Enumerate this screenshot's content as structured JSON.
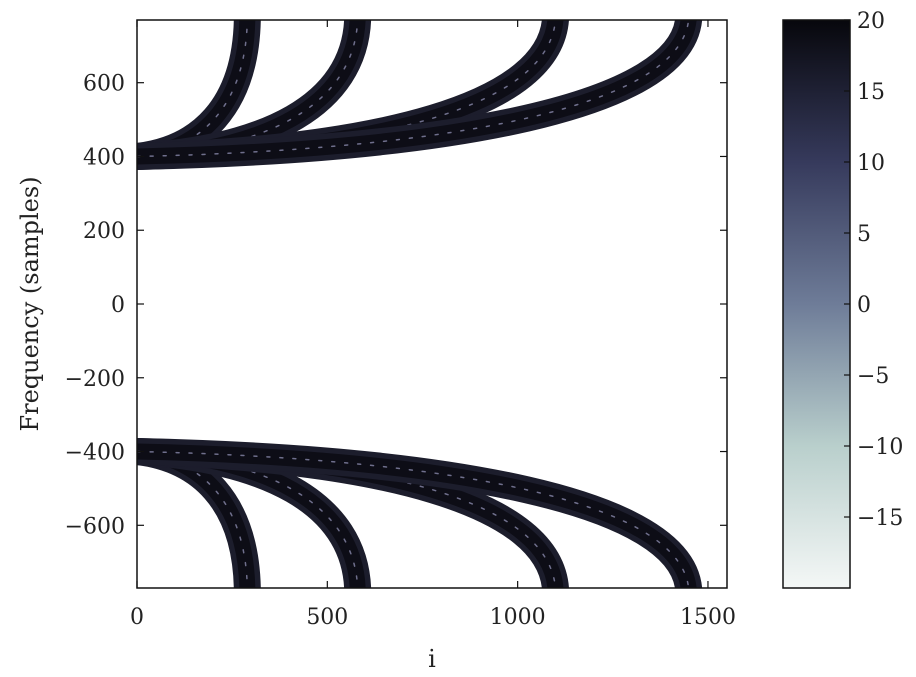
{
  "chart_data": {
    "type": "heatmap",
    "title": "",
    "xlabel": "i",
    "ylabel": "Frequency (samples)",
    "xlim": [
      0,
      1550
    ],
    "ylim": [
      -770,
      770
    ],
    "x_ticks": [
      0,
      500,
      1000,
      1500
    ],
    "x_tick_labels": [
      "0",
      "500",
      "1000",
      "1500"
    ],
    "y_ticks": [
      600,
      400,
      200,
      0,
      -200,
      -400,
      -600
    ],
    "y_tick_labels": [
      "600",
      "400",
      "200",
      "0",
      "−200",
      "−400",
      "−600"
    ],
    "grid": false,
    "colorbar": {
      "range": [
        -20,
        20
      ],
      "ticks": [
        20,
        15,
        10,
        5,
        0,
        -5,
        -10,
        -15
      ],
      "tick_labels": [
        "20",
        "15",
        "10",
        "5",
        "0",
        "−5",
        "−10",
        "−15"
      ],
      "colormap": "bone_r",
      "low_color": "#f2f6f4",
      "high_color": "#0a0a12"
    },
    "series": [
      {
        "origin": [
          0,
          400
        ],
        "end": [
          290,
          770
        ]
      },
      {
        "origin": [
          0,
          400
        ],
        "end": [
          580,
          770
        ]
      },
      {
        "origin": [
          0,
          400
        ],
        "end": [
          1100,
          770
        ]
      },
      {
        "origin": [
          0,
          400
        ],
        "end": [
          1450,
          770
        ]
      },
      {
        "origin": [
          0,
          -400
        ],
        "end": [
          290,
          -770
        ]
      },
      {
        "origin": [
          0,
          -400
        ],
        "end": [
          580,
          -770
        ]
      },
      {
        "origin": [
          0,
          -400
        ],
        "end": [
          1100,
          -770
        ]
      },
      {
        "origin": [
          0,
          -400
        ],
        "end": [
          1450,
          -770
        ]
      }
    ]
  }
}
